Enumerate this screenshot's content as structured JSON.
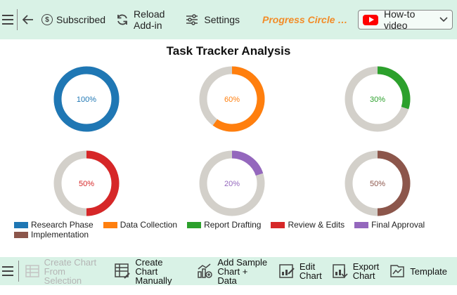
{
  "toolbar": {
    "subscribed_label": "Subscribed",
    "reload_label_1": "Reload",
    "reload_label_2": "Add-in",
    "settings_label": "Settings",
    "brand_label": "Progress Circle Ch...",
    "howto_label": "How-to video"
  },
  "colors": {
    "toolbar_bg": "#d9f2e6",
    "brand": "#f28c28",
    "track": "#d3d0ca"
  },
  "chart_data": {
    "type": "pie",
    "title": "Task Tracker Analysis",
    "series": [
      {
        "name": "Research Phase",
        "value": 100,
        "label": "100%",
        "color": "#1f77b4"
      },
      {
        "name": "Data Collection",
        "value": 60,
        "label": "60%",
        "color": "#ff7f0e"
      },
      {
        "name": "Report Drafting",
        "value": 30,
        "label": "30%",
        "color": "#2ca02c"
      },
      {
        "name": "Review & Edits",
        "value": 50,
        "label": "50%",
        "color": "#d62728"
      },
      {
        "name": "Final Approval",
        "value": 20,
        "label": "20%",
        "color": "#9467bd"
      },
      {
        "name": "Implementation",
        "value": 50,
        "label": "50%",
        "color": "#8c564b"
      }
    ],
    "legend": "bottom"
  },
  "bottombar": {
    "create_selection_1": "Create Chart",
    "create_selection_2": "From Selection",
    "create_manual_1": "Create Chart",
    "create_manual_2": "Manually",
    "add_sample_1": "Add Sample",
    "add_sample_2": "Chart + Data",
    "edit_1": "Edit",
    "edit_2": "Chart",
    "export_1": "Export",
    "export_2": "Chart",
    "template": "Template"
  }
}
